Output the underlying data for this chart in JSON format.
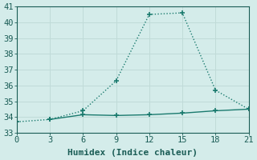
{
  "line1_x": [
    0,
    3,
    6,
    9,
    12,
    15,
    18,
    21
  ],
  "line1_y": [
    33.7,
    33.85,
    34.4,
    36.3,
    40.5,
    40.6,
    35.7,
    34.5
  ],
  "line2_x": [
    3,
    6,
    9,
    12,
    15,
    18,
    21
  ],
  "line2_y": [
    33.85,
    34.15,
    34.1,
    34.15,
    34.25,
    34.4,
    34.5
  ],
  "line_color": "#1a7a6e",
  "marker": "+",
  "marker_size": 4,
  "line1_style": "dotted",
  "line2_style": "solid",
  "line_width": 1.0,
  "xlabel": "Humidex (Indice chaleur)",
  "xlim": [
    0,
    21
  ],
  "ylim": [
    33,
    41
  ],
  "xticks": [
    0,
    3,
    6,
    9,
    12,
    15,
    18,
    21
  ],
  "yticks": [
    33,
    34,
    35,
    36,
    37,
    38,
    39,
    40,
    41
  ],
  "bg_color": "#d4ecea",
  "grid_color": "#c0dbd8",
  "font_color": "#1a5c55",
  "xlabel_fontsize": 8,
  "tick_fontsize": 7.5
}
